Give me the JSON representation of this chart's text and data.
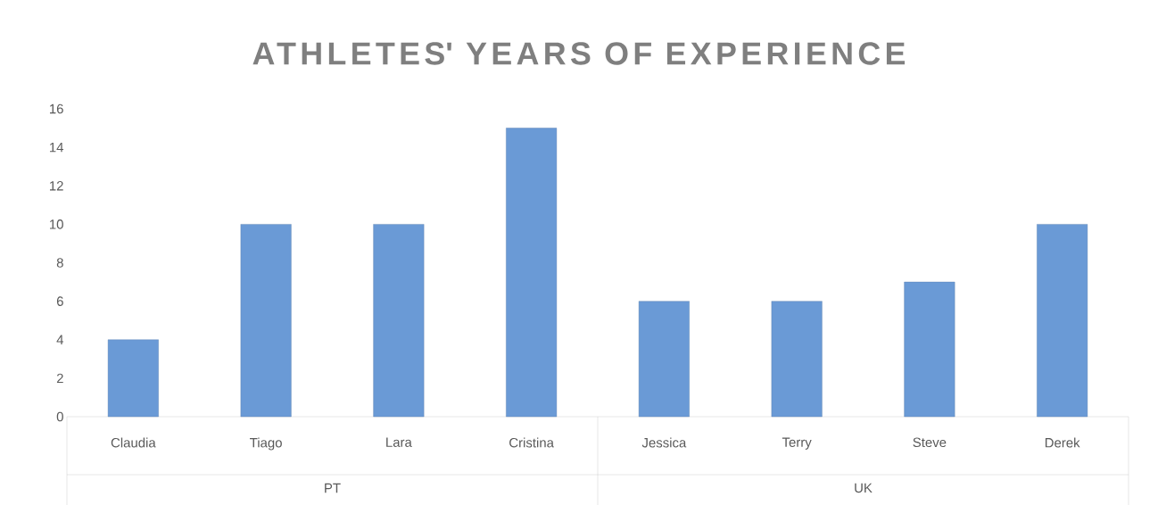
{
  "chart_data": {
    "type": "bar",
    "title": "ATHLETES' YEARS OF EXPERIENCE",
    "categories": [
      "Claudia",
      "Tiago",
      "Lara",
      "Cristina",
      "Jessica",
      "Terry",
      "Steve",
      "Derek"
    ],
    "values": [
      4,
      10,
      10,
      15,
      6,
      6,
      7,
      10
    ],
    "color": "#6a9ad6",
    "ylim": [
      0,
      16
    ],
    "yticks": [
      0,
      2,
      4,
      6,
      8,
      10,
      12,
      14,
      16
    ],
    "annotations": [
      "PT",
      "UK"
    ],
    "grid": false
  }
}
